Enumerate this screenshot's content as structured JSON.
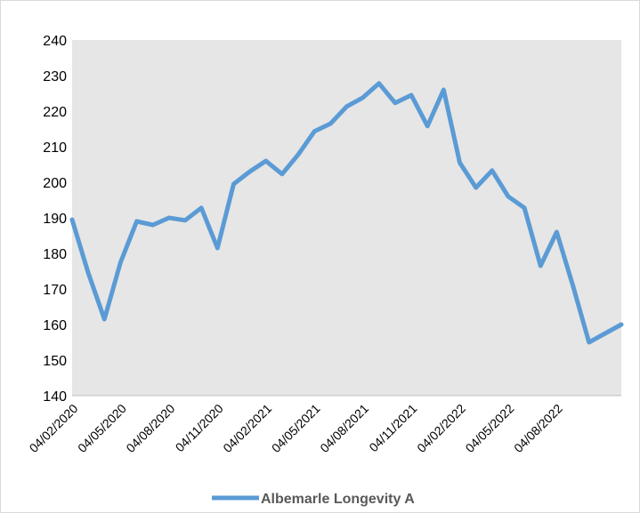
{
  "chart_data": {
    "type": "line",
    "title": "",
    "xlabel": "",
    "ylabel": "",
    "ylim": [
      140,
      240
    ],
    "yticks": [
      140,
      150,
      160,
      170,
      180,
      190,
      200,
      210,
      220,
      230,
      240
    ],
    "x_tick_labels": [
      "04/02/2020",
      "04/05/2020",
      "04/08/2020",
      "04/11/2020",
      "04/02/2021",
      "04/05/2021",
      "04/08/2021",
      "04/11/2021",
      "04/02/2022",
      "04/05/2022",
      "04/08/2022"
    ],
    "x": [
      "2020-02",
      "2020-03",
      "2020-04",
      "2020-05",
      "2020-06",
      "2020-07",
      "2020-08",
      "2020-09",
      "2020-10",
      "2020-11",
      "2020-12",
      "2021-01",
      "2021-02",
      "2021-03",
      "2021-04",
      "2021-05",
      "2021-06",
      "2021-07",
      "2021-08",
      "2021-09",
      "2021-10",
      "2021-11",
      "2021-12",
      "2022-01",
      "2022-02",
      "2022-03",
      "2022-04",
      "2022-05",
      "2022-06",
      "2022-07",
      "2022-08",
      "2022-09",
      "2022-10",
      "2022-11",
      "2022-12"
    ],
    "grid": false,
    "plot_background": "#e6e6e6",
    "legend_position": "bottom",
    "series": [
      {
        "name": "Albemarle Longevity A",
        "color": "#5b9bd5",
        "values": [
          189.5,
          174.5,
          161.5,
          177.5,
          189,
          188,
          190,
          189.3,
          192.8,
          181.5,
          199.5,
          203,
          206,
          202.3,
          207.8,
          214.3,
          216.5,
          221.3,
          223.8,
          227.8,
          222.3,
          224.5,
          215.8,
          226,
          205.5,
          198.5,
          203.3,
          196,
          192.8,
          176.5,
          186,
          171,
          155,
          157.5,
          160
        ]
      }
    ]
  }
}
